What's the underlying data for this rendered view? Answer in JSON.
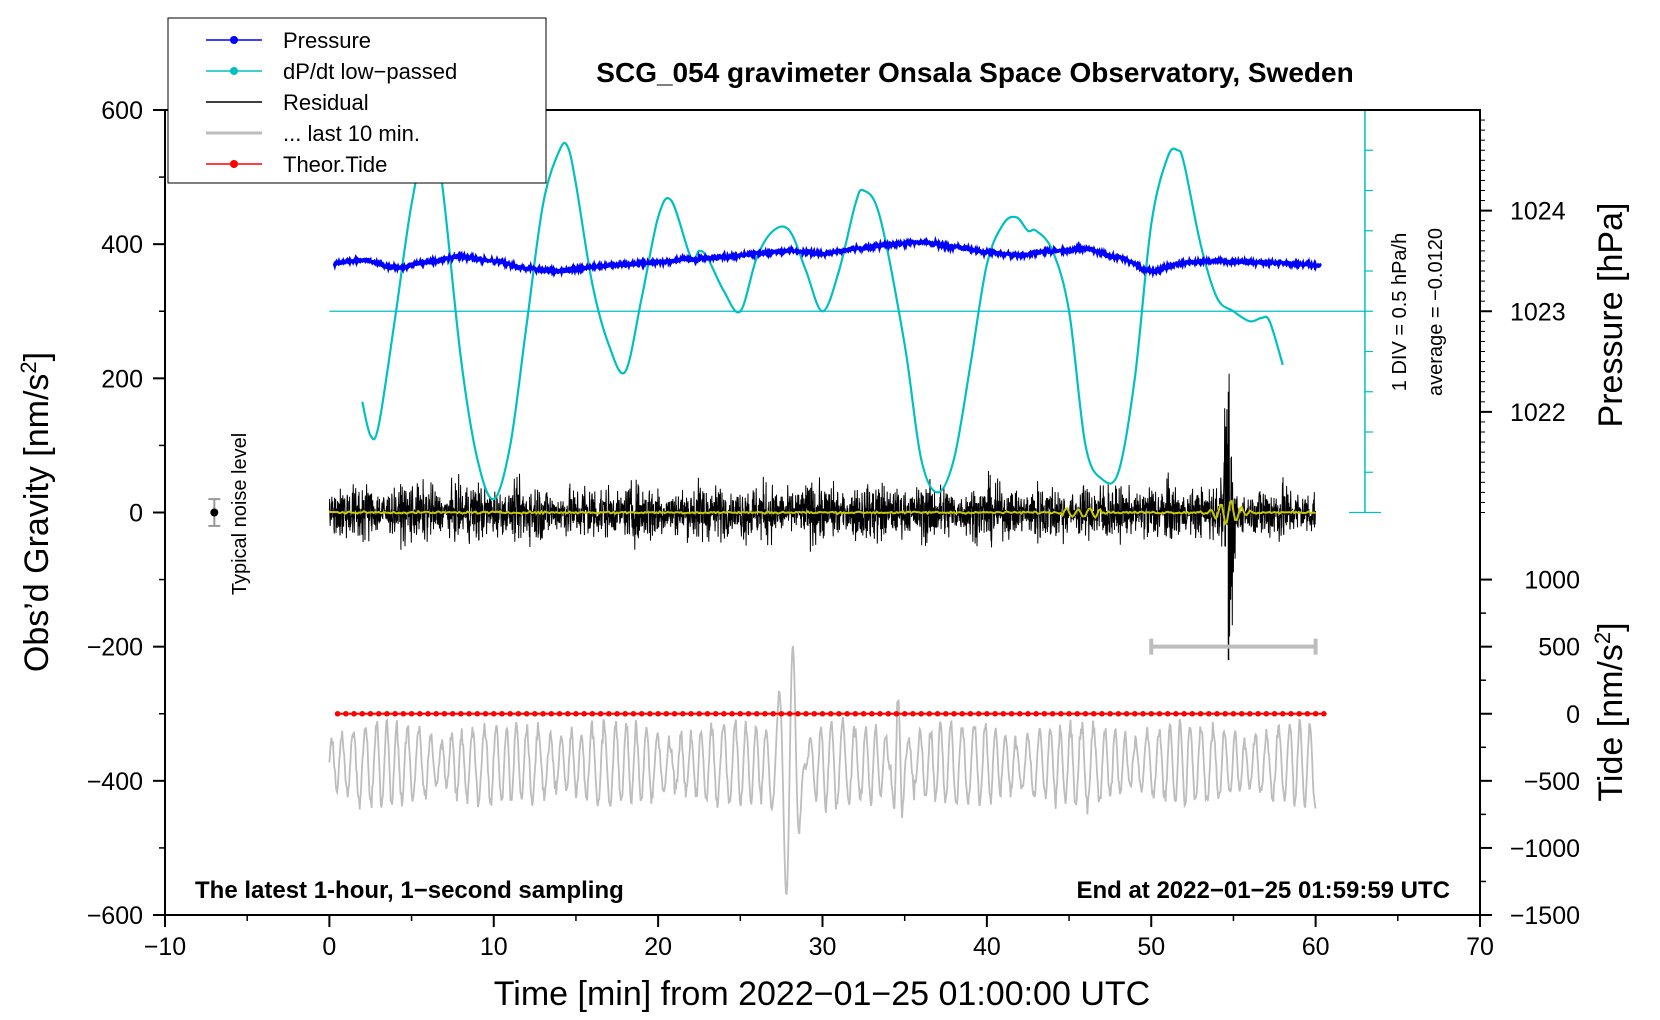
{
  "chart_data": {
    "type": "line",
    "title": "SCG_054 gravimeter Onsala Space Observatory, Sweden",
    "xlabel": "Time [min] from 2022−01−25 01:00:00 UTC",
    "ylabel": "Obs’d Gravity [nm/s",
    "ylabel_sup": "2",
    "ylabel_end": "]",
    "xlim": [
      -10,
      70
    ],
    "ylim": [
      -600,
      600
    ],
    "x_ticks": [
      -10,
      0,
      10,
      20,
      30,
      40,
      50,
      60,
      70
    ],
    "x_tick_labels": [
      "−10",
      "0",
      "10",
      "20",
      "30",
      "40",
      "50",
      "60",
      "70"
    ],
    "y_ticks": [
      -600,
      -400,
      -200,
      0,
      200,
      400,
      600
    ],
    "y_tick_labels": [
      "−600",
      "−400",
      "−200",
      "0",
      "200",
      "400",
      "600"
    ],
    "pressure_axis": {
      "label": "Pressure [hPa]",
      "ticks": [
        1022,
        1023,
        1024
      ],
      "tick_labels": [
        "1022",
        "1023",
        "1024"
      ],
      "ref_value": 1023,
      "ref_gravity": 300,
      "gravity_per_hPa": 150
    },
    "tide_axis": {
      "label": "Tide [nm/s",
      "label_sup": "2",
      "label_end": "]",
      "ticks": [
        1000,
        500,
        0,
        -500,
        -1000,
        -1500
      ],
      "tick_labels": [
        "1000",
        "500",
        "0",
        "−500",
        "−1000",
        "−1500"
      ],
      "ref_gravity": -300,
      "gravity_per_unit": 0.2
    },
    "dpdt_scale": {
      "label_div": "1 DIV = 0.5 hPa/h",
      "label_avg": "average = −0.0120",
      "x": 63,
      "y_base": 0,
      "y_top": 600,
      "divs": 10
    },
    "noise_level": {
      "label": "Typical noise level",
      "x": -7,
      "y": 0,
      "err": 20
    },
    "last10_bar": {
      "x0": 50,
      "x1": 60,
      "y": -200
    },
    "annotations": {
      "left": "The latest 1-hour, 1−second sampling",
      "right": "End at 2022−01−25 01:59:59 UTC"
    },
    "legend": [
      {
        "label": "Pressure",
        "color": "#0000ff",
        "marker": true
      },
      {
        "label": "dP/dt low−passed",
        "color": "#00c0c0",
        "marker": true
      },
      {
        "label": "Residual",
        "color": "#000000",
        "marker": false
      },
      {
        "label": "... last 10 min.",
        "color": "#bdbdbd",
        "marker": false
      },
      {
        "label": "Theor.Tide",
        "color": "#ff0000",
        "marker": true
      }
    ],
    "series": [
      {
        "name": "Pressure",
        "color": "#0000ff",
        "x": [
          0.3,
          2,
          4,
          6,
          8,
          10,
          12,
          14,
          16,
          18,
          20,
          22,
          24,
          26,
          28,
          30,
          32,
          34,
          36,
          38,
          40,
          42,
          44,
          46,
          48,
          50,
          52,
          54,
          56,
          58,
          60.3
        ],
        "y": [
          372,
          376,
          365,
          373,
          382,
          375,
          364,
          360,
          366,
          370,
          373,
          378,
          381,
          386,
          390,
          386,
          393,
          399,
          403,
          396,
          388,
          384,
          390,
          393,
          380,
          360,
          372,
          375,
          373,
          372,
          368
        ]
      },
      {
        "name": "dP/dt low-passed",
        "color": "#00c0c0",
        "x": [
          2,
          2.5,
          3,
          4,
          5,
          6,
          6.8,
          8,
          9,
          10,
          11,
          12,
          13,
          14,
          14.5,
          15,
          16,
          17,
          18,
          19,
          20,
          20.8,
          22,
          22.5,
          23,
          24,
          25,
          26,
          27,
          28,
          29,
          30,
          31,
          32,
          32.5,
          33.5,
          35,
          36,
          37,
          38,
          39,
          40,
          41,
          41.8,
          42.5,
          43,
          44,
          45,
          46,
          47,
          48,
          49,
          50,
          51,
          51.6,
          52,
          53,
          54,
          55,
          56,
          56.7,
          57.2,
          58
        ],
        "y": [
          165,
          115,
          130,
          290,
          460,
          560,
          500,
          230,
          80,
          20,
          100,
          280,
          460,
          540,
          545,
          490,
          340,
          250,
          210,
          320,
          440,
          465,
          380,
          390,
          380,
          330,
          300,
          380,
          420,
          420,
          360,
          300,
          360,
          460,
          480,
          440,
          250,
          80,
          30,
          80,
          220,
          370,
          430,
          440,
          420,
          420,
          390,
          300,
          100,
          50,
          60,
          200,
          430,
          530,
          540,
          520,
          400,
          320,
          300,
          285,
          290,
          285,
          220
        ]
      },
      {
        "name": "Theor.Tide",
        "color": "#ff0000",
        "x": [
          0.5,
          60.5
        ],
        "y": [
          -300,
          -300
        ]
      }
    ],
    "residual_envelope": {
      "x_range": [
        0,
        60
      ],
      "typical_amplitude": 40,
      "spike_at_x": 54.7,
      "spike_max": 180,
      "spike_min": -220
    },
    "last10_trace_envelope": {
      "x_range": [
        0,
        60
      ],
      "baseline": -385,
      "big_swing_at_x": 28,
      "big_swing_max": -190,
      "big_swing_min": -590
    }
  }
}
